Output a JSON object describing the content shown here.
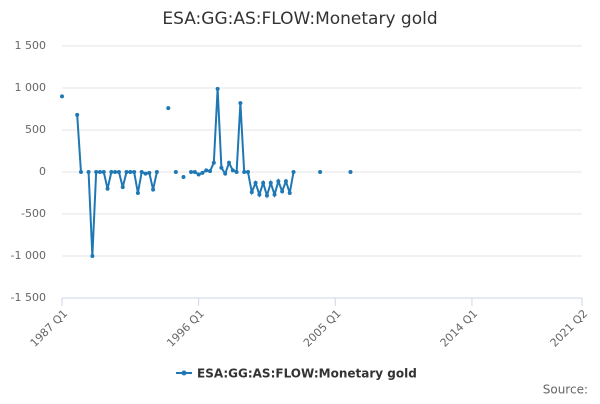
{
  "chart_data": {
    "type": "line",
    "title": "ESA:GG:AS:FLOW:Monetary gold",
    "x": [
      "1987 Q1",
      "1987 Q2",
      "1988 Q1",
      "1988 Q2",
      "1988 Q3",
      "1988 Q4",
      "1989 Q1",
      "1989 Q2",
      "1989 Q3",
      "1989 Q4",
      "1990 Q1",
      "1990 Q2",
      "1990 Q3",
      "1990 Q4",
      "1991 Q1",
      "1991 Q2",
      "1991 Q3",
      "1991 Q4",
      "1992 Q1",
      "1992 Q2",
      "1992 Q3",
      "1992 Q4",
      "1993 Q1",
      "1993 Q2",
      "1993 Q3",
      "1994 Q1",
      "1994 Q2",
      "1994 Q3",
      "1994 Q4",
      "1995 Q1",
      "1995 Q2",
      "1995 Q3",
      "1995 Q4",
      "1996 Q1",
      "1996 Q2",
      "1996 Q3",
      "1996 Q4",
      "1997 Q1",
      "1997 Q2",
      "1997 Q3",
      "1997 Q4",
      "1998 Q1",
      "1998 Q2",
      "1998 Q3",
      "1998 Q4",
      "1999 Q1",
      "1999 Q2",
      "1999 Q3",
      "1999 Q4",
      "2000 Q1",
      "2000 Q2",
      "2000 Q3",
      "2000 Q4",
      "2001 Q1",
      "2001 Q2",
      "2001 Q3",
      "2001 Q4",
      "2002 Q1",
      "2002 Q2",
      "2002 Q3",
      "2004 Q1",
      "2004 Q2",
      "2006 Q1"
    ],
    "series": [
      {
        "name": "ESA:GG:AS:FLOW:Monetary gold",
        "color": "#1f78b4",
        "values": [
          900,
          null,
          680,
          0,
          null,
          0,
          -1000,
          0,
          0,
          0,
          -200,
          0,
          0,
          0,
          -180,
          0,
          0,
          0,
          -250,
          0,
          -20,
          -10,
          -210,
          0,
          null,
          760,
          null,
          0,
          null,
          -60,
          null,
          0,
          0,
          -30,
          -10,
          20,
          10,
          110,
          990,
          50,
          -20,
          110,
          20,
          0,
          820,
          0,
          0,
          -240,
          -130,
          -270,
          -130,
          -280,
          -130,
          -270,
          -110,
          -230,
          -110,
          -250,
          0,
          null,
          0,
          null,
          0
        ]
      }
    ],
    "xlim": [
      "1987 Q1",
      "2021 Q2"
    ],
    "xticks": [
      "1987 Q1",
      "1996 Q1",
      "2005 Q1",
      "2014 Q1",
      "2021 Q2"
    ],
    "ylim": [
      -1500,
      1500
    ],
    "yticks": [
      {
        "value": -1500,
        "label": "-1 500"
      },
      {
        "value": -1000,
        "label": "-1 000"
      },
      -500,
      0,
      500,
      {
        "value": 1000,
        "label": "1 000"
      },
      {
        "value": 1500,
        "label": "1 500"
      }
    ],
    "grid": true,
    "source": "Source:"
  }
}
